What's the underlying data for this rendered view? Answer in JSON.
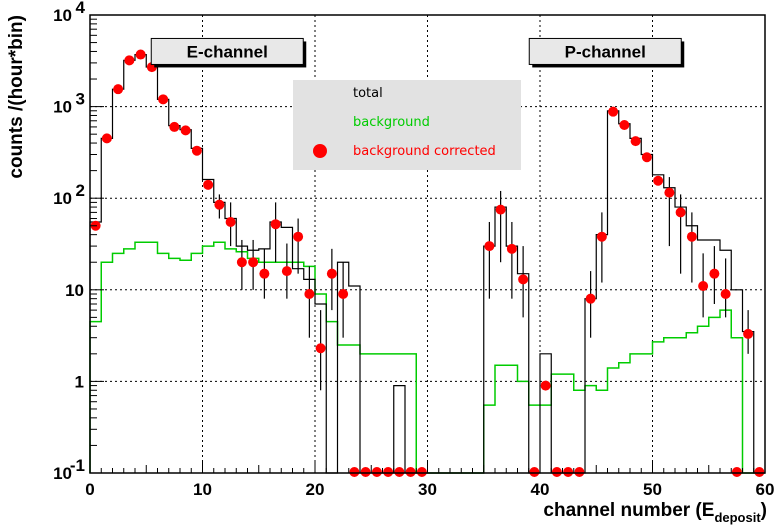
{
  "chart_data": {
    "type": "histogram-log",
    "xlabel_main": "channel number (E",
    "xlabel_sub": "deposit",
    "xlabel_end": ")",
    "ylabel": "counts /(hour*bin)",
    "xlim": [
      0,
      60
    ],
    "ylim": [
      0.1,
      10000
    ],
    "yscale": "log",
    "grid": true,
    "x_ticks": [
      {
        "value": 0,
        "label": "0"
      },
      {
        "value": 10,
        "label": "10"
      },
      {
        "value": 20,
        "label": "20"
      },
      {
        "value": 30,
        "label": "30"
      },
      {
        "value": 40,
        "label": "40"
      },
      {
        "value": 50,
        "label": "50"
      },
      {
        "value": 60,
        "label": "60"
      }
    ],
    "y_ticks": [
      {
        "value": 0.1,
        "label": "10",
        "sup": "-1"
      },
      {
        "value": 1,
        "label": "1",
        "sup": ""
      },
      {
        "value": 10,
        "label": "10",
        "sup": ""
      },
      {
        "value": 100,
        "label": "10",
        "sup": "2"
      },
      {
        "value": 1000,
        "label": "10",
        "sup": "3"
      },
      {
        "value": 10000,
        "label": "10",
        "sup": "4"
      }
    ],
    "annotations": [
      {
        "text": "E-channel",
        "x_center": 12.2,
        "y_value": 4000
      },
      {
        "text": "P-channel",
        "x_center": 45.8,
        "y_value": 4000
      }
    ],
    "legend": {
      "placement": "top-center",
      "entries": [
        {
          "name": "total",
          "color": "#000000",
          "marker": "line"
        },
        {
          "name": "background",
          "color": "#00cc00",
          "marker": "line"
        },
        {
          "name": "background corrected",
          "color": "#ff0000",
          "marker": "circle"
        }
      ]
    },
    "bin_width": 1,
    "series": [
      {
        "name": "total",
        "color": "#000000",
        "style": "step",
        "values": [
          55,
          450,
          1550,
          3200,
          3700,
          2700,
          1200,
          620,
          560,
          350,
          160,
          90,
          60,
          30,
          27,
          28,
          55,
          48,
          17,
          13,
          7,
          0.1,
          20,
          11,
          0.1,
          0.1,
          0.1,
          0.9,
          0.1,
          0.1,
          0.1,
          0.1,
          0.1,
          0.1,
          0.1,
          30,
          80,
          30,
          15,
          0.1,
          2,
          0.1,
          0.1,
          0.1,
          8,
          40,
          900,
          650,
          450,
          300,
          180,
          130,
          80,
          50,
          35,
          35,
          27,
          10,
          3.5,
          0.1
        ]
      },
      {
        "name": "background",
        "color": "#00cc00",
        "style": "step",
        "values": [
          4.5,
          20,
          25,
          28,
          33,
          33,
          25,
          22,
          21,
          25,
          30,
          33,
          28,
          26,
          22,
          20,
          20,
          20,
          20,
          18,
          9,
          4.5,
          2.5,
          2.5,
          2,
          2,
          2,
          2,
          2,
          0.1,
          0.1,
          0.1,
          0.1,
          0.1,
          0.1,
          0.55,
          1.5,
          1.5,
          1,
          0.55,
          0.55,
          1.2,
          1.2,
          0.8,
          0.9,
          0.8,
          1.4,
          1.6,
          2,
          2,
          2.7,
          3,
          3,
          3.4,
          4,
          5,
          6,
          3,
          0.1,
          0.1
        ]
      },
      {
        "name": "background corrected",
        "color": "#ff0000",
        "style": "points",
        "x": [
          0.5,
          1.5,
          2.5,
          3.5,
          4.5,
          5.5,
          6.5,
          7.5,
          8.5,
          9.5,
          10.5,
          11.5,
          12.5,
          13.5,
          14.5,
          15.5,
          16.5,
          17.5,
          18.5,
          19.5,
          20.5,
          21.5,
          22.5,
          23.5,
          24.5,
          25.5,
          26.5,
          27.5,
          28.5,
          29.5,
          35.5,
          36.5,
          37.5,
          38.5,
          39.5,
          40.5,
          41.5,
          42.5,
          43.5,
          44.5,
          45.5,
          46.5,
          47.5,
          48.5,
          49.5,
          50.5,
          51.5,
          52.5,
          53.5,
          54.5,
          55.5,
          56.5,
          57.5,
          58.5,
          59.5
        ],
        "y": [
          50,
          450,
          1550,
          3200,
          3700,
          2700,
          1200,
          600,
          550,
          330,
          140,
          85,
          55,
          20,
          20,
          15,
          52,
          16,
          38,
          9,
          2.3,
          15,
          9,
          0.1,
          0.1,
          0.1,
          0.1,
          0.1,
          0.1,
          0.1,
          30,
          75,
          28,
          13,
          0.1,
          0.9,
          0.1,
          0.1,
          0.1,
          8,
          38,
          880,
          630,
          420,
          280,
          155,
          115,
          70,
          38,
          11,
          15,
          9,
          0.1,
          3.3,
          0.1
        ],
        "err_lo": [
          null,
          null,
          null,
          null,
          null,
          null,
          null,
          null,
          null,
          null,
          null,
          60,
          30,
          10,
          10,
          8,
          20,
          8,
          15,
          3,
          0.8,
          6,
          3,
          null,
          null,
          null,
          null,
          null,
          null,
          null,
          8,
          20,
          8,
          5,
          null,
          null,
          null,
          null,
          null,
          3,
          12,
          null,
          null,
          null,
          null,
          null,
          30,
          15,
          12,
          5,
          7,
          5,
          null,
          2,
          null
        ],
        "err_hi": [
          null,
          null,
          null,
          null,
          null,
          null,
          null,
          null,
          null,
          null,
          null,
          110,
          90,
          35,
          35,
          28,
          90,
          32,
          60,
          18,
          6,
          28,
          20,
          null,
          null,
          null,
          null,
          null,
          null,
          null,
          55,
          120,
          55,
          30,
          null,
          3,
          null,
          null,
          null,
          16,
          70,
          null,
          null,
          null,
          null,
          null,
          170,
          110,
          70,
          25,
          30,
          22,
          null,
          6,
          null
        ]
      }
    ]
  }
}
